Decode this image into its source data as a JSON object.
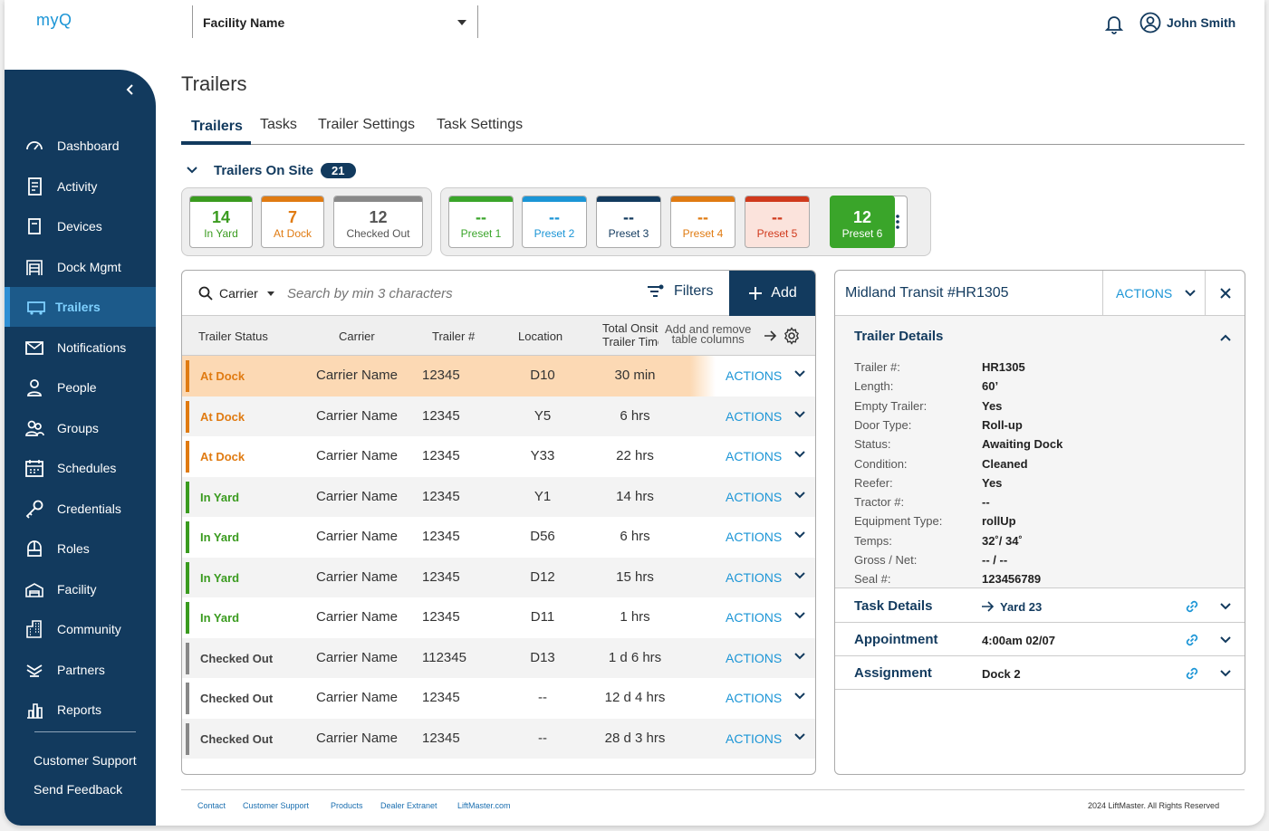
{
  "header": {
    "logo": "myQ",
    "facility": "Facility Name",
    "user": "John Smith"
  },
  "sidebar": {
    "items": [
      {
        "label": "Dashboard",
        "icon": "gauge-icon"
      },
      {
        "label": "Activity",
        "icon": "activity-icon"
      },
      {
        "label": "Devices",
        "icon": "device-icon"
      },
      {
        "label": "Dock Mgmt",
        "icon": "dock-icon"
      },
      {
        "label": "Trailers",
        "icon": "trailer-icon"
      },
      {
        "label": "Notifications",
        "icon": "mail-icon"
      },
      {
        "label": "People",
        "icon": "person-icon"
      },
      {
        "label": "Groups",
        "icon": "group-icon"
      },
      {
        "label": "Schedules",
        "icon": "calendar-icon"
      },
      {
        "label": "Credentials",
        "icon": "key-icon"
      },
      {
        "label": "Roles",
        "icon": "roles-icon"
      },
      {
        "label": "Facility",
        "icon": "facility-icon"
      },
      {
        "label": "Community",
        "icon": "building-icon"
      },
      {
        "label": "Partners",
        "icon": "partners-icon"
      },
      {
        "label": "Reports",
        "icon": "chart-icon"
      }
    ],
    "support": "Customer Support",
    "feedback": "Send Feedback"
  },
  "page": {
    "title": "Trailers",
    "tabs": [
      "Trailers",
      "Tasks",
      "Trailer Settings",
      "Task Settings"
    ],
    "onsite_label": "Trailers On Site",
    "onsite_count": "21"
  },
  "status_cards": [
    {
      "num": "14",
      "label": "In Yard",
      "color": "#3a9b1f"
    },
    {
      "num": "7",
      "label": "At Dock",
      "color": "#e07b12"
    },
    {
      "num": "12",
      "label": "Checked Out",
      "color": "#888888"
    }
  ],
  "preset_cards": [
    {
      "num": "--",
      "label": "Preset 1",
      "color": "#3aa52a"
    },
    {
      "num": "--",
      "label": "Preset 2",
      "color": "#1b95d6"
    },
    {
      "num": "--",
      "label": "Preset 3",
      "color": "#123a5e"
    },
    {
      "num": "--",
      "label": "Preset 4",
      "color": "#e07b12"
    },
    {
      "num": "--",
      "label": "Preset 5",
      "color": "#d0391c"
    },
    {
      "num": "12",
      "label": "Preset 6",
      "color": "#3aa52a"
    }
  ],
  "search": {
    "filter": "Carrier",
    "placeholder": "Search by min 3 characters",
    "filters_label": "Filters",
    "add_label": "Add"
  },
  "table": {
    "columns": [
      "Trailer Status",
      "Carrier",
      "Trailer #",
      "Location",
      "Total Onsite",
      "Trailer Time",
      "Add and remove",
      "table columns"
    ],
    "actions_label": "ACTIONS",
    "rows": [
      {
        "status": "At Dock",
        "carrier": "Carrier Name",
        "trailer": "12345",
        "location": "D10",
        "time": "30 min"
      },
      {
        "status": "At Dock",
        "carrier": "Carrier Name",
        "trailer": "12345",
        "location": "Y5",
        "time": "6 hrs"
      },
      {
        "status": "At Dock",
        "carrier": "Carrier Name",
        "trailer": "12345",
        "location": "Y33",
        "time": "22 hrs"
      },
      {
        "status": "In Yard",
        "carrier": "Carrier Name",
        "trailer": "12345",
        "location": "Y1",
        "time": "14 hrs"
      },
      {
        "status": "In Yard",
        "carrier": "Carrier Name",
        "trailer": "12345",
        "location": "D56",
        "time": "6 hrs"
      },
      {
        "status": "In Yard",
        "carrier": "Carrier Name",
        "trailer": "12345",
        "location": "D12",
        "time": "15 hrs"
      },
      {
        "status": "In Yard",
        "carrier": "Carrier Name",
        "trailer": "12345",
        "location": "D11",
        "time": "1 hrs"
      },
      {
        "status": "Checked Out",
        "carrier": "Carrier Name",
        "trailer": "112345",
        "location": "D13",
        "time": "1 d 6 hrs"
      },
      {
        "status": "Checked Out",
        "carrier": "Carrier Name",
        "trailer": "12345",
        "location": "--",
        "time": "12 d 4 hrs"
      },
      {
        "status": "Checked Out",
        "carrier": "Carrier Name",
        "trailer": "12345",
        "location": "--",
        "time": "28 d  3 hrs"
      }
    ]
  },
  "detail": {
    "title": "Midland Transit #HR1305",
    "actions": "ACTIONS",
    "section": "Trailer Details",
    "fields": [
      {
        "label": "Trailer #:",
        "value": "HR1305"
      },
      {
        "label": "Length:",
        "value": "60’"
      },
      {
        "label": "Empty Trailer:",
        "value": "Yes"
      },
      {
        "label": "Door Type:",
        "value": "Roll-up"
      },
      {
        "label": "Status:",
        "value": "Awaiting Dock"
      },
      {
        "label": "Condition:",
        "value": "Cleaned"
      },
      {
        "label": "Reefer:",
        "value": "Yes"
      },
      {
        "label": "Tractor #:",
        "value": "--"
      },
      {
        "label": "Equipment Type:",
        "value": "rollUp"
      },
      {
        "label": "Temps:",
        "value": "32˚/ 34˚"
      },
      {
        "label": "Gross / Net:",
        "value": "-- / --"
      },
      {
        "label": "Seal #:",
        "value": "123456789"
      }
    ],
    "task": {
      "label": "Task Details",
      "value": "Yard 23"
    },
    "appointment": {
      "label": "Appointment",
      "value": "4:00am 02/07"
    },
    "assignment": {
      "label": "Assignment",
      "value": "Dock 2"
    }
  },
  "footer": {
    "links": [
      "Contact",
      "Customer Support",
      "Products",
      "Dealer Extranet",
      "LiftMaster.com"
    ],
    "copyright": "2024 LiftMaster. All Rights Reserved"
  },
  "colors": {
    "navy": "#123a5e",
    "blue": "#1b95d6",
    "orange": "#e07b12",
    "green": "#3a9b1f",
    "grey": "#888888"
  }
}
